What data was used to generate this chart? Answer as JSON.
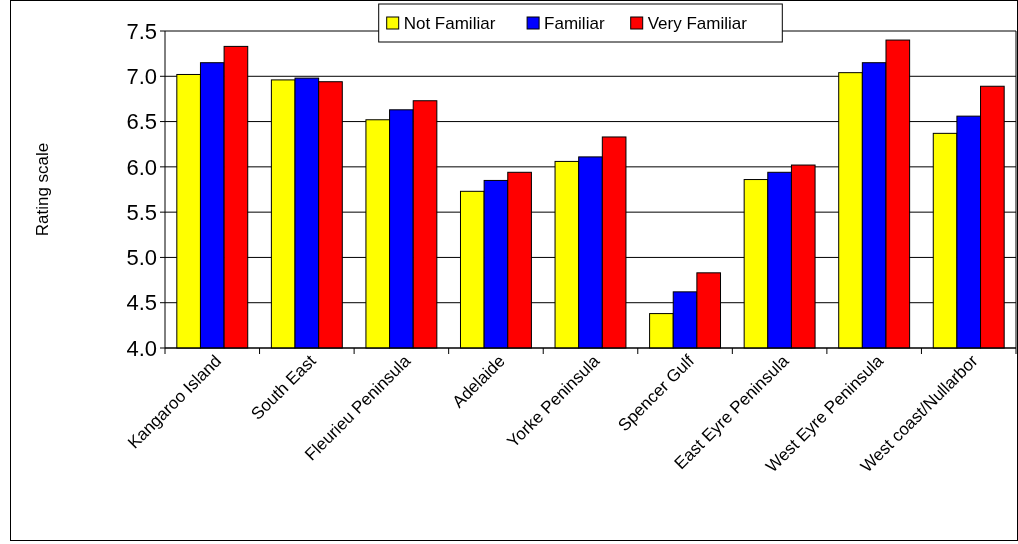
{
  "chart_data": {
    "type": "bar",
    "ylabel": "Rating scale",
    "categories": [
      "Kangaroo Island",
      "South East",
      "Fleurieu Peninsula",
      "Adelaide",
      "Yorke Peninsula",
      "Spencer Gulf",
      "East Eyre Peninsula",
      "West Eyre Peninsula",
      "West coast/Nullarbor"
    ],
    "series": [
      {
        "name": "Not Familiar",
        "color": "#ffff00",
        "values": [
          7.02,
          6.96,
          6.52,
          5.73,
          6.06,
          4.38,
          5.86,
          7.04,
          6.37
        ]
      },
      {
        "name": "Familiar",
        "color": "#0000ff",
        "values": [
          7.15,
          6.98,
          6.63,
          5.85,
          6.11,
          4.62,
          5.94,
          7.15,
          6.56
        ]
      },
      {
        "name": "Very Familiar",
        "color": "#ff0000",
        "values": [
          7.33,
          6.94,
          6.73,
          5.94,
          6.33,
          4.83,
          6.02,
          7.4,
          6.89
        ]
      }
    ],
    "ylim": [
      4,
      7.5
    ],
    "yticks": [
      {
        "value": 4,
        "label": "4.0"
      },
      {
        "value": 4.5,
        "label": "4.5"
      },
      {
        "value": 5,
        "label": "5.0"
      },
      {
        "value": 5.5,
        "label": "5.5"
      },
      {
        "value": 6,
        "label": "6.0"
      },
      {
        "value": 6.5,
        "label": "6.5"
      },
      {
        "value": 7,
        "label": "7.0"
      },
      {
        "value": 7.5,
        "label": "7.5"
      }
    ],
    "grid": "y",
    "legend": "top"
  }
}
